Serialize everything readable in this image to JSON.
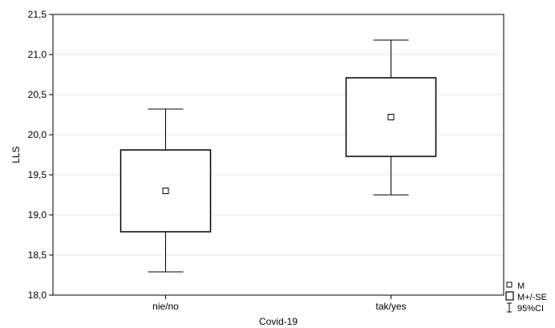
{
  "chart_data": {
    "type": "box",
    "xlabel": "Covid-19",
    "ylabel": "LLS",
    "ylim": [
      18.0,
      21.5
    ],
    "yticks": [
      18.0,
      18.5,
      19.0,
      19.5,
      20.0,
      20.5,
      21.0,
      21.5
    ],
    "ytick_labels": [
      "18,0",
      "18,5",
      "19,0",
      "19,5",
      "20,0",
      "20,5",
      "21,0",
      "21,5"
    ],
    "grid": true,
    "categories": [
      "nie/no",
      "tak/yes"
    ],
    "series": [
      {
        "category": "nie/no",
        "mean": 19.3,
        "se_low": 18.79,
        "se_high": 19.81,
        "ci_low": 18.29,
        "ci_high": 20.32
      },
      {
        "category": "tak/yes",
        "mean": 20.22,
        "se_low": 19.73,
        "se_high": 20.71,
        "ci_low": 19.25,
        "ci_high": 21.18
      }
    ],
    "legend": {
      "position": "bottom-right",
      "items": [
        {
          "symbol": "small-square",
          "label": "M"
        },
        {
          "symbol": "box",
          "label": "M+/-SE"
        },
        {
          "symbol": "whisker",
          "label": "95%CI"
        }
      ]
    }
  }
}
